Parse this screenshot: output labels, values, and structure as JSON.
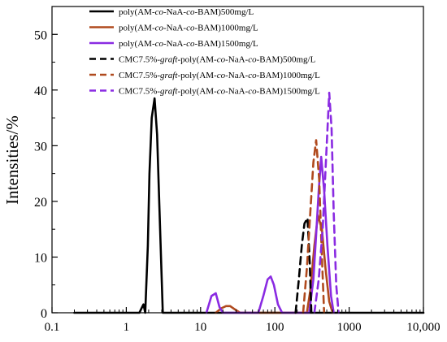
{
  "chart_data": {
    "type": "line",
    "title": "",
    "xlabel": "",
    "ylabel": "Intensities/%",
    "x_scale": "log",
    "xlim": [
      0.1,
      10000
    ],
    "ylim": [
      0,
      55
    ],
    "x_ticks": [
      {
        "value": 0.1,
        "label": "0.1"
      },
      {
        "value": 1,
        "label": "1"
      },
      {
        "value": 10,
        "label": "10"
      },
      {
        "value": 100,
        "label": "100"
      },
      {
        "value": 1000,
        "label": "1000"
      },
      {
        "value": 10000,
        "label": "10,000"
      }
    ],
    "y_ticks": [
      {
        "value": 0,
        "label": "0"
      },
      {
        "value": 10,
        "label": "10"
      },
      {
        "value": 20,
        "label": "20"
      },
      {
        "value": 30,
        "label": "30"
      },
      {
        "value": 40,
        "label": "40"
      },
      {
        "value": 50,
        "label": "50"
      }
    ],
    "grid": false,
    "legend_position": "top-center",
    "series": [
      {
        "name": "poly(AM-co-NaA-co-BAM)500mg/L",
        "legend_parts": [
          "poly(AM-",
          "co",
          "-NaA-",
          "co",
          "-BAM)500mg/L"
        ],
        "color": "#000000",
        "dash": "solid",
        "marker": "",
        "points": [
          [
            0.2,
            0
          ],
          [
            1.5,
            0
          ],
          [
            1.7,
            1.5
          ],
          [
            1.8,
            0
          ],
          [
            1.95,
            12
          ],
          [
            2.05,
            25
          ],
          [
            2.2,
            35
          ],
          [
            2.4,
            38.5
          ],
          [
            2.6,
            32
          ],
          [
            2.85,
            15
          ],
          [
            3.1,
            0
          ],
          [
            10000,
            0
          ]
        ]
      },
      {
        "name": "poly(AM-co-NaA-co-BAM)1000mg/L",
        "legend_parts": [
          "poly(AM-",
          "co",
          "-NaA-",
          "co",
          "-BAM)1000mg/L"
        ],
        "color": "#b04a1e",
        "dash": "solid",
        "marker": "",
        "points": [
          [
            16,
            0
          ],
          [
            19,
            0.8
          ],
          [
            22,
            1.2
          ],
          [
            25,
            1.2
          ],
          [
            29,
            0.6
          ],
          [
            34,
            0
          ],
          [
            270,
            0
          ],
          [
            300,
            4
          ],
          [
            340,
            12
          ],
          [
            380,
            17.5
          ],
          [
            430,
            15
          ],
          [
            480,
            8
          ],
          [
            540,
            2
          ],
          [
            600,
            0
          ]
        ]
      },
      {
        "name": "poly(AM-co-NaA-co-BAM)1500mg/L",
        "legend_parts": [
          "poly(AM-",
          "co",
          "-NaA-",
          "co",
          "-BAM)1500mg/L"
        ],
        "color": "#8a2be2",
        "dash": "solid",
        "marker": "",
        "points": [
          [
            12,
            0
          ],
          [
            14,
            3
          ],
          [
            16,
            3.5
          ],
          [
            18,
            1
          ],
          [
            20,
            0
          ],
          [
            60,
            0
          ],
          [
            70,
            3
          ],
          [
            80,
            6
          ],
          [
            88,
            6.5
          ],
          [
            97,
            5
          ],
          [
            110,
            1.5
          ],
          [
            125,
            0
          ],
          [
            290,
            0
          ],
          [
            330,
            6
          ],
          [
            360,
            14
          ],
          [
            390,
            22
          ],
          [
            420,
            28
          ],
          [
            460,
            22
          ],
          [
            510,
            12
          ],
          [
            570,
            3
          ],
          [
            620,
            0
          ]
        ]
      },
      {
        "name": "CMC7.5%-graft-poly(AM-co-NaA-co-BAM)500mg/L",
        "legend_parts": [
          "CMC7.5%-",
          "graft",
          "-poly(AM-",
          "co",
          "-NaA-",
          "co",
          "-BAM)500mg/L"
        ],
        "color": "#000000",
        "dash": "dashed",
        "marker": "",
        "points": [
          [
            190,
            0
          ],
          [
            210,
            6
          ],
          [
            230,
            12
          ],
          [
            250,
            16
          ],
          [
            275,
            17
          ],
          [
            295,
            9
          ],
          [
            310,
            0
          ]
        ]
      },
      {
        "name": "CMC7.5%-graft-poly(AM-co-NaA-co-BAM)1000mg/L",
        "legend_parts": [
          "CMC7.5%-",
          "graft",
          "-poly(AM-",
          "co",
          "-NaA-",
          "co",
          "-BAM)1000mg/L"
        ],
        "color": "#b04a1e",
        "dash": "dashed",
        "marker": "",
        "points": [
          [
            240,
            0
          ],
          [
            270,
            8
          ],
          [
            300,
            18
          ],
          [
            330,
            27
          ],
          [
            360,
            31
          ],
          [
            395,
            24
          ],
          [
            430,
            10
          ],
          [
            460,
            0
          ]
        ]
      },
      {
        "name": "CMC7.5%-graft-poly(AM-co-NaA-co-BAM)1500mg/L",
        "legend_parts": [
          "CMC7.5%-",
          "graft",
          "-poly(AM-",
          "co",
          "-NaA-",
          "co",
          "-BAM)1500mg/L"
        ],
        "color": "#8a2be2",
        "dash": "dashed",
        "marker": "",
        "points": [
          [
            340,
            0
          ],
          [
            390,
            6
          ],
          [
            440,
            15
          ],
          [
            490,
            28
          ],
          [
            540,
            39.5
          ],
          [
            580,
            33
          ],
          [
            620,
            18
          ],
          [
            670,
            5
          ],
          [
            720,
            0
          ]
        ]
      }
    ]
  }
}
